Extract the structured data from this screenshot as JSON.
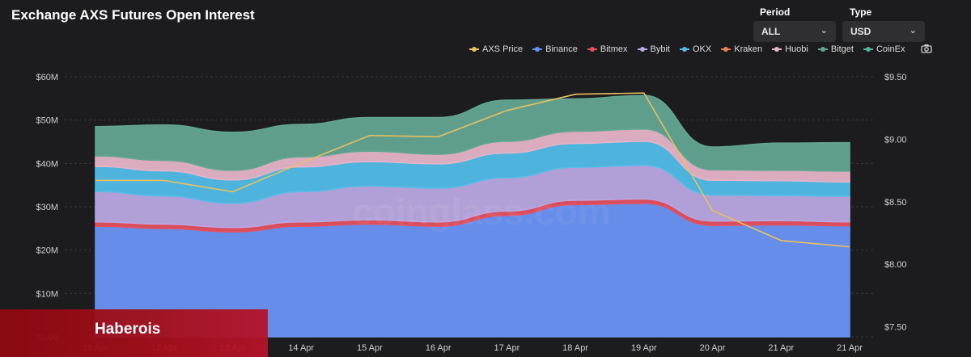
{
  "header": {
    "title": "Exchange AXS Futures Open Interest"
  },
  "controls": {
    "period_label": "Period",
    "period_value": "ALL",
    "type_label": "Type",
    "type_value": "USD"
  },
  "brand": {
    "text": "Haberois"
  },
  "icons": {
    "camera": "camera-icon",
    "dropdown": "chevron-down-icon"
  },
  "chart_data": {
    "type": "area",
    "title": "Exchange AXS Futures Open Interest",
    "watermark": "coinglass.com",
    "categories": [
      "11 Apr",
      "12 Apr",
      "13 Apr",
      "14 Apr",
      "15 Apr",
      "16 Apr",
      "17 Apr",
      "18 Apr",
      "19 Apr",
      "20 Apr",
      "21 Apr",
      "21 Apr"
    ],
    "stacked": true,
    "y_left": {
      "ticks": [
        "$0.00",
        "$10M",
        "$20M",
        "$30M",
        "$40M",
        "$50M",
        "$60M"
      ],
      "range": [
        0,
        60000000
      ]
    },
    "y_right": {
      "ticks": [
        "$7.50",
        "$8.00",
        "$8.50",
        "$9.00",
        "$9.50"
      ],
      "range": [
        7.0,
        9.5
      ]
    },
    "grid": true,
    "legend_position": "top-right",
    "series": [
      {
        "name": "Binance",
        "color": "#6b93f5",
        "values": [
          25.5,
          25.0,
          24.2,
          25.5,
          26.0,
          25.5,
          28.0,
          30.5,
          30.8,
          25.7,
          25.8,
          25.6
        ]
      },
      {
        "name": "Bitmex",
        "color": "#e5505f",
        "values": [
          1.0,
          1.0,
          1.0,
          1.0,
          1.0,
          1.0,
          1.0,
          1.0,
          1.0,
          1.0,
          1.0,
          0.9
        ]
      },
      {
        "name": "Bybit",
        "color": "#b9a8e2",
        "values": [
          7.0,
          6.5,
          5.6,
          7.0,
          7.8,
          7.8,
          7.7,
          7.6,
          7.8,
          6.0,
          5.8,
          5.9
        ]
      },
      {
        "name": "OKX",
        "color": "#52bde8",
        "values": [
          5.8,
          5.8,
          5.4,
          5.7,
          5.6,
          5.6,
          5.7,
          5.5,
          5.5,
          3.4,
          3.4,
          3.3
        ]
      },
      {
        "name": "Kraken",
        "color": "#e8814f",
        "values": [
          0,
          0,
          0,
          0,
          0,
          0,
          0,
          0,
          0,
          0,
          0,
          0
        ]
      },
      {
        "name": "Huobi",
        "color": "#e6b4c8",
        "values": [
          2.4,
          2.4,
          2.2,
          2.3,
          2.4,
          2.2,
          2.7,
          2.8,
          2.8,
          2.4,
          2.4,
          2.5
        ]
      },
      {
        "name": "Bitget",
        "color": "#63a593",
        "values": [
          6.8,
          8.2,
          8.8,
          7.5,
          7.8,
          8.5,
          9.5,
          7.5,
          7.8,
          5.3,
          6.3,
          6.6
        ]
      },
      {
        "name": "CoinEx",
        "color": "#4fb59a",
        "values": [
          0,
          0,
          0,
          0,
          0,
          0,
          0,
          0,
          0,
          0,
          0,
          0
        ]
      }
    ],
    "series_unit": "$M",
    "line_series": {
      "name": "AXS Price",
      "color": "#e8c060",
      "axis": "right",
      "values": [
        8.67,
        8.67,
        8.58,
        8.81,
        9.03,
        9.02,
        9.23,
        9.36,
        9.37,
        8.43,
        8.19,
        8.14
      ]
    }
  }
}
